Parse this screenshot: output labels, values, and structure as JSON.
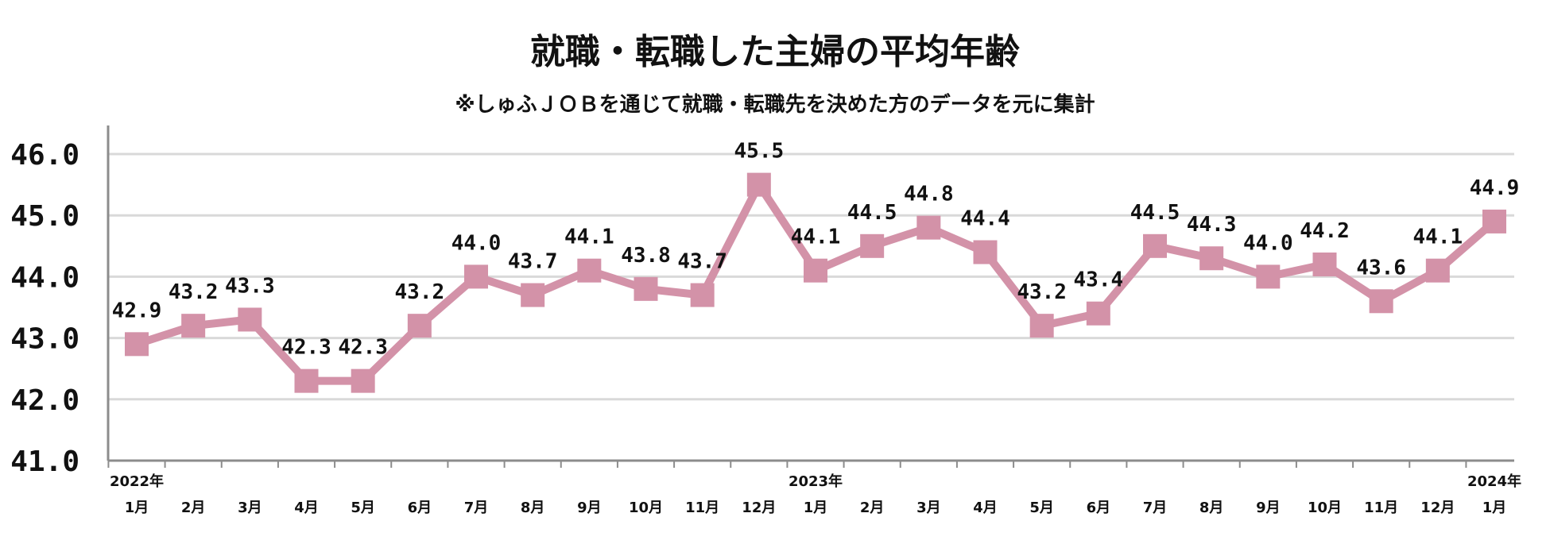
{
  "chart_data": {
    "type": "line",
    "title": "就職・転職した主婦の平均年齢",
    "subtitle": "※しゅふＪＯＢを通じて就職・転職先を決めた方のデータを元に集計",
    "categories": [
      "1月",
      "2月",
      "3月",
      "4月",
      "5月",
      "6月",
      "7月",
      "8月",
      "9月",
      "10月",
      "11月",
      "12月",
      "1月",
      "2月",
      "3月",
      "4月",
      "5月",
      "6月",
      "7月",
      "8月",
      "9月",
      "10月",
      "11月",
      "12月",
      "1月"
    ],
    "year_labels": [
      {
        "index": 0,
        "label": "2022年"
      },
      {
        "index": 12,
        "label": "2023年"
      },
      {
        "index": 24,
        "label": "2024年"
      }
    ],
    "series": [
      {
        "name": "平均年齢",
        "values": [
          42.9,
          43.2,
          43.3,
          42.3,
          42.3,
          43.2,
          44.0,
          43.7,
          44.1,
          43.8,
          43.7,
          45.5,
          44.1,
          44.5,
          44.8,
          44.4,
          43.2,
          43.4,
          44.5,
          44.3,
          44.0,
          44.2,
          43.6,
          44.1,
          44.9
        ],
        "labels": [
          "42.9",
          "43.2",
          "43.3",
          "42.3",
          "42.3",
          "43.2",
          "44.0",
          "43.7",
          "44.1",
          "43.8",
          "43.7",
          "45.5",
          "44.1",
          "44.5",
          "44.8",
          "44.4",
          "43.2",
          "43.4",
          "44.5",
          "44.3",
          "44.0",
          "44.2",
          "43.6",
          "44.1",
          "44.9"
        ]
      }
    ],
    "yticks": [
      41.0,
      42.0,
      43.0,
      44.0,
      45.0,
      46.0
    ],
    "ytick_labels": [
      "41.0",
      "42.0",
      "43.0",
      "44.0",
      "45.0",
      "46.0"
    ],
    "ylim": [
      41.0,
      46.5
    ],
    "grid": true,
    "colors": {
      "line": "#d392a8",
      "marker": "#d392a8",
      "grid": "#d9d9d9",
      "axis": "#8c8c8c",
      "text": "#111111"
    }
  }
}
